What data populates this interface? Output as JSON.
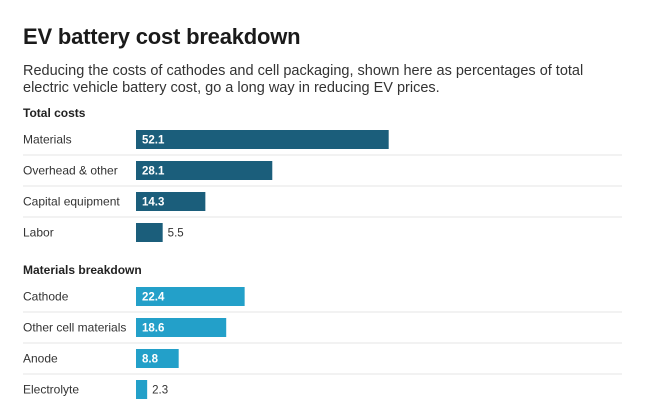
{
  "title": "EV battery cost breakdown",
  "subtitle": "Reducing the costs of cathodes and cell packaging, shown here as percentages of total electric vehicle battery cost, go a long way in reducing EV prices.",
  "colors": {
    "total_costs_bar": "#1b5e7b",
    "materials_breakdown_bar": "#23a0c9"
  },
  "chart_data": [
    {
      "type": "bar",
      "orientation": "horizontal",
      "title": "Total costs",
      "categories": [
        "Materials",
        "Overhead & other",
        "Capital equipment",
        "Labor"
      ],
      "values": [
        52.1,
        28.1,
        14.3,
        5.5
      ],
      "value_labels": [
        "52.1",
        "28.1",
        "14.3",
        "5.5"
      ],
      "xlim": [
        0,
        100
      ],
      "grid": false,
      "legend": "none"
    },
    {
      "type": "bar",
      "orientation": "horizontal",
      "title": "Materials breakdown",
      "categories": [
        "Cathode",
        "Other cell materials",
        "Anode",
        "Electrolyte"
      ],
      "values": [
        22.4,
        18.6,
        8.8,
        2.3
      ],
      "value_labels": [
        "22.4",
        "18.6",
        "8.8",
        "2.3"
      ],
      "xlim": [
        0,
        100
      ],
      "grid": false,
      "legend": "none"
    }
  ]
}
